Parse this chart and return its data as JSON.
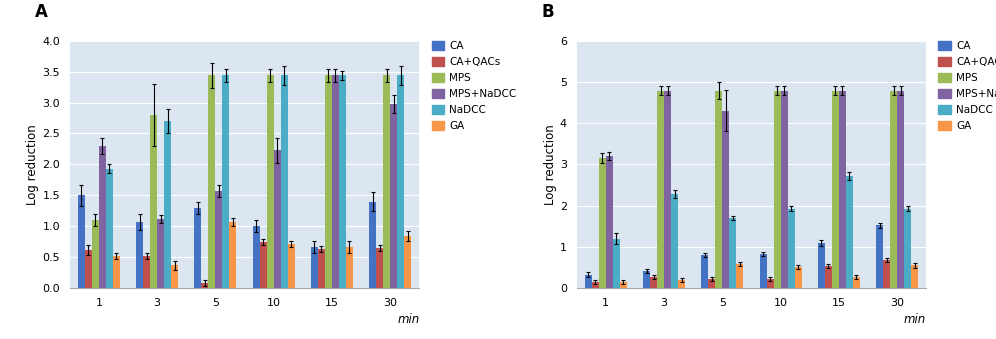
{
  "A": {
    "title": "A",
    "ylim": [
      0,
      4
    ],
    "yticks": [
      0,
      0.5,
      1.0,
      1.5,
      2.0,
      2.5,
      3.0,
      3.5,
      4.0
    ],
    "ylabel": "Log reduction",
    "xlabel": "min",
    "categories": [
      "1",
      "3",
      "5",
      "10",
      "15",
      "30"
    ],
    "series": {
      "CA": [
        1.5,
        1.07,
        1.3,
        1.0,
        0.67,
        1.4
      ],
      "CA+QACs": [
        0.62,
        0.52,
        0.08,
        0.75,
        0.63,
        0.65
      ],
      "MPS": [
        1.1,
        2.8,
        3.44,
        3.44,
        3.44,
        3.44
      ],
      "MPS+NaDCC": [
        2.3,
        1.12,
        1.57,
        2.23,
        3.44,
        2.98
      ],
      "NaDCC": [
        1.93,
        2.7,
        3.44,
        3.44,
        3.44,
        3.44
      ],
      "GA": [
        0.52,
        0.37,
        1.07,
        0.72,
        0.67,
        0.85
      ]
    },
    "errors": {
      "CA": [
        0.17,
        0.13,
        0.1,
        0.1,
        0.1,
        0.15
      ],
      "CA+QACs": [
        0.08,
        0.05,
        0.05,
        0.05,
        0.05,
        0.05
      ],
      "MPS": [
        0.1,
        0.5,
        0.2,
        0.1,
        0.1,
        0.1
      ],
      "MPS+NaDCC": [
        0.13,
        0.07,
        0.1,
        0.2,
        0.1,
        0.15
      ],
      "NaDCC": [
        0.07,
        0.2,
        0.1,
        0.15,
        0.07,
        0.15
      ],
      "GA": [
        0.05,
        0.07,
        0.07,
        0.05,
        0.1,
        0.08
      ]
    }
  },
  "B": {
    "title": "B",
    "ylim": [
      0,
      6
    ],
    "yticks": [
      0,
      1,
      2,
      3,
      4,
      5,
      6
    ],
    "ylabel": "Log reduction",
    "xlabel": "min",
    "categories": [
      "1",
      "3",
      "5",
      "10",
      "15",
      "30"
    ],
    "series": {
      "CA": [
        0.33,
        0.42,
        0.8,
        0.82,
        1.1,
        1.52
      ],
      "CA+QACs": [
        0.15,
        0.28,
        0.22,
        0.22,
        0.53,
        0.68
      ],
      "MPS": [
        3.15,
        4.79,
        4.79,
        4.79,
        4.79,
        4.79
      ],
      "MPS+NaDCC": [
        3.2,
        4.79,
        4.3,
        4.79,
        4.79,
        4.79
      ],
      "NaDCC": [
        1.2,
        2.28,
        1.7,
        1.93,
        2.72,
        1.93
      ],
      "GA": [
        0.15,
        0.2,
        0.58,
        0.52,
        0.27,
        0.55
      ]
    },
    "errors": {
      "CA": [
        0.05,
        0.05,
        0.05,
        0.05,
        0.07,
        0.07
      ],
      "CA+QACs": [
        0.05,
        0.05,
        0.05,
        0.05,
        0.05,
        0.05
      ],
      "MPS": [
        0.12,
        0.1,
        0.2,
        0.1,
        0.1,
        0.1
      ],
      "MPS+NaDCC": [
        0.1,
        0.1,
        0.5,
        0.1,
        0.1,
        0.1
      ],
      "NaDCC": [
        0.13,
        0.1,
        0.05,
        0.07,
        0.1,
        0.07
      ],
      "GA": [
        0.05,
        0.05,
        0.05,
        0.05,
        0.05,
        0.05
      ]
    }
  },
  "colors": {
    "CA": "#4472C4",
    "CA+QACs": "#C0504D",
    "MPS": "#9BBB59",
    "MPS+NaDCC": "#8064A2",
    "NaDCC": "#4BACC6",
    "GA": "#F79646"
  },
  "series_order": [
    "CA",
    "CA+QACs",
    "MPS",
    "MPS+NaDCC",
    "NaDCC",
    "GA"
  ],
  "plot_bg_color": "#DCE6F1",
  "fig_bg_color": "#FFFFFF",
  "grid_color": "#FFFFFF",
  "bar_width": 0.12
}
